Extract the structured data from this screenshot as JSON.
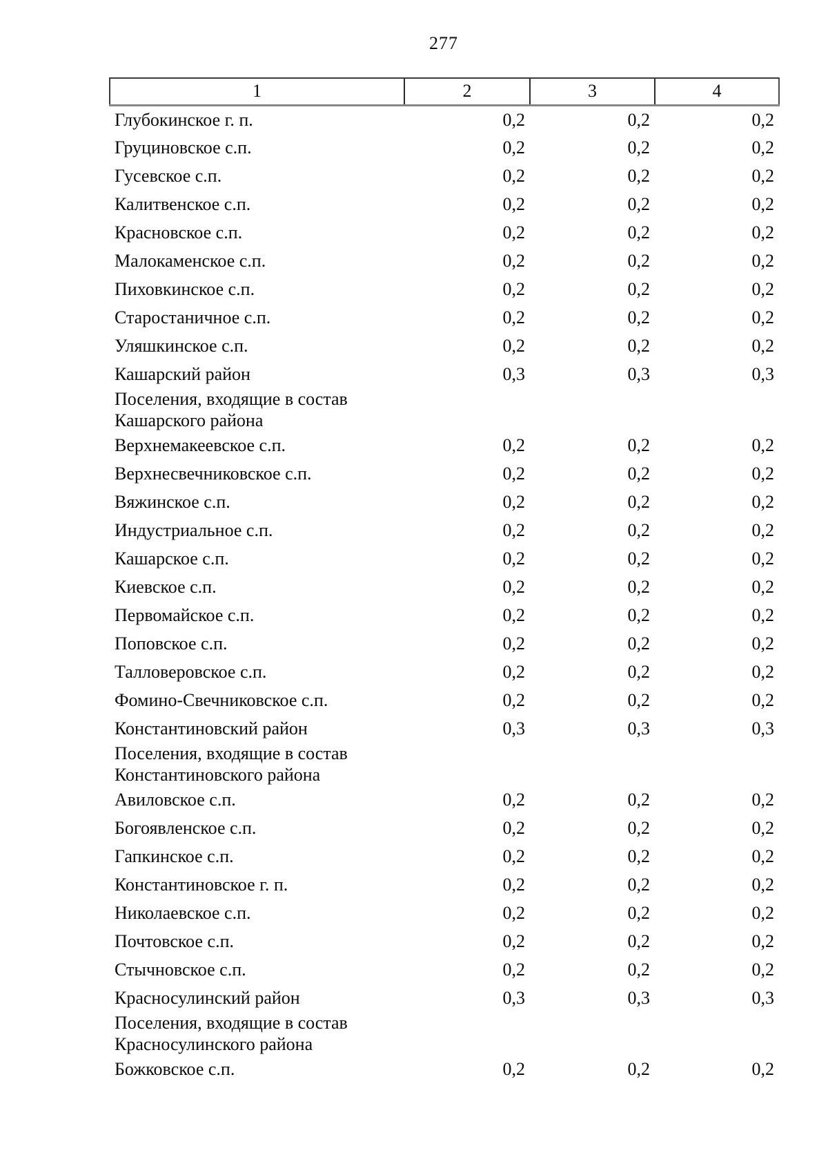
{
  "page": {
    "number": "277"
  },
  "table": {
    "columns": [
      "1",
      "2",
      "3",
      "4"
    ],
    "rows": [
      {
        "label": "Глубокинское г. п.",
        "values": [
          "0,2",
          "0,2",
          "0,2"
        ]
      },
      {
        "label": "Груциновское с.п.",
        "values": [
          "0,2",
          "0,2",
          "0,2"
        ]
      },
      {
        "label": "Гусевское с.п.",
        "values": [
          "0,2",
          "0,2",
          "0,2"
        ]
      },
      {
        "label": "Калитвенское с.п.",
        "values": [
          "0,2",
          "0,2",
          "0,2"
        ]
      },
      {
        "label": "Красновское с.п.",
        "values": [
          "0,2",
          "0,2",
          "0,2"
        ]
      },
      {
        "label": "Малокаменское с.п.",
        "values": [
          "0,2",
          "0,2",
          "0,2"
        ]
      },
      {
        "label": "Пиховкинское с.п.",
        "values": [
          "0,2",
          "0,2",
          "0,2"
        ]
      },
      {
        "label": "Старостаничное с.п.",
        "values": [
          "0,2",
          "0,2",
          "0,2"
        ]
      },
      {
        "label": "Уляшкинское с.п.",
        "values": [
          "0,2",
          "0,2",
          "0,2"
        ]
      },
      {
        "label": "Кашарский район",
        "values": [
          "0,3",
          "0,3",
          "0,3"
        ]
      },
      {
        "label": "Поселения, входящие в состав Кашарского района",
        "values": [
          "",
          "",
          ""
        ]
      },
      {
        "label": "Верхнемакеевское с.п.",
        "values": [
          "0,2",
          "0,2",
          "0,2"
        ]
      },
      {
        "label": "Верхнесвечниковское с.п.",
        "values": [
          "0,2",
          "0,2",
          "0,2"
        ]
      },
      {
        "label": "Вяжинское с.п.",
        "values": [
          "0,2",
          "0,2",
          "0,2"
        ]
      },
      {
        "label": "Индустриальное с.п.",
        "values": [
          "0,2",
          "0,2",
          "0,2"
        ]
      },
      {
        "label": "Кашарское с.п.",
        "values": [
          "0,2",
          "0,2",
          "0,2"
        ]
      },
      {
        "label": "Киевское с.п.",
        "values": [
          "0,2",
          "0,2",
          "0,2"
        ]
      },
      {
        "label": "Первомайское с.п.",
        "values": [
          "0,2",
          "0,2",
          "0,2"
        ]
      },
      {
        "label": "Поповское с.п.",
        "values": [
          "0,2",
          "0,2",
          "0,2"
        ]
      },
      {
        "label": "Талловеровское с.п.",
        "values": [
          "0,2",
          "0,2",
          "0,2"
        ]
      },
      {
        "label": "Фомино-Свечниковское с.п.",
        "values": [
          "0,2",
          "0,2",
          "0,2"
        ]
      },
      {
        "label": "Константиновский район",
        "values": [
          "0,3",
          "0,3",
          "0,3"
        ]
      },
      {
        "label": "Поселения, входящие в состав Константиновского района",
        "values": [
          "",
          "",
          ""
        ]
      },
      {
        "label": "Авиловское с.п.",
        "values": [
          "0,2",
          "0,2",
          "0,2"
        ]
      },
      {
        "label": "Богоявленское с.п.",
        "values": [
          "0,2",
          "0,2",
          "0,2"
        ]
      },
      {
        "label": "Гапкинское с.п.",
        "values": [
          "0,2",
          "0,2",
          "0,2"
        ]
      },
      {
        "label": "Константиновское г. п.",
        "values": [
          "0,2",
          "0,2",
          "0,2"
        ]
      },
      {
        "label": "Николаевское с.п.",
        "values": [
          "0,2",
          "0,2",
          "0,2"
        ]
      },
      {
        "label": "Почтовское с.п.",
        "values": [
          "0,2",
          "0,2",
          "0,2"
        ]
      },
      {
        "label": "Стычновское с.п.",
        "values": [
          "0,2",
          "0,2",
          "0,2"
        ]
      },
      {
        "label": "Красносулинский район",
        "values": [
          "0,3",
          "0,3",
          "0,3"
        ]
      },
      {
        "label": "Поселения, входящие в состав Красносулинского района",
        "values": [
          "",
          "",
          ""
        ]
      },
      {
        "label": "Божковское с.п.",
        "values": [
          "0,2",
          "0,2",
          "0,2"
        ]
      }
    ]
  }
}
